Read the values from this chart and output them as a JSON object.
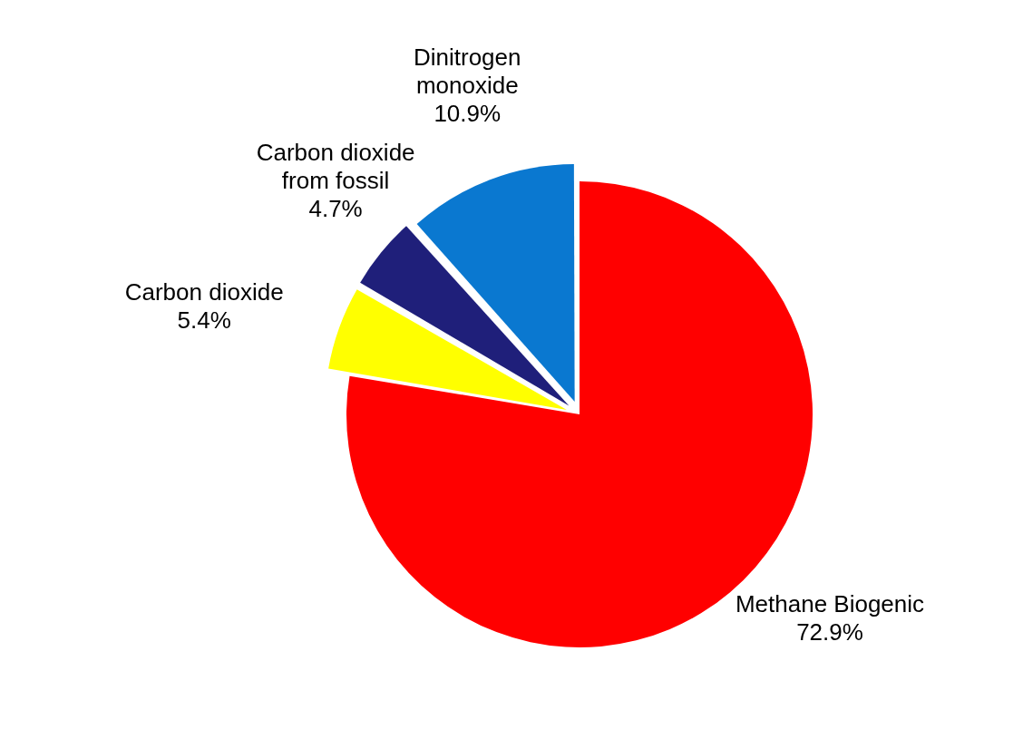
{
  "chart_data": {
    "type": "pie",
    "categories": [
      "Methane Biogenic",
      "Carbon dioxide",
      "Carbon dioxide from fossil",
      "Dinitrogen monoxide"
    ],
    "values": [
      72.9,
      5.4,
      4.7,
      10.9
    ],
    "value_labels": [
      "72.9%",
      "5.4%",
      "4.7%",
      "10.9%"
    ],
    "colors": [
      "#ff0000",
      "#ffff00",
      "#1f1f7a",
      "#0a78d0"
    ],
    "legend": false
  }
}
